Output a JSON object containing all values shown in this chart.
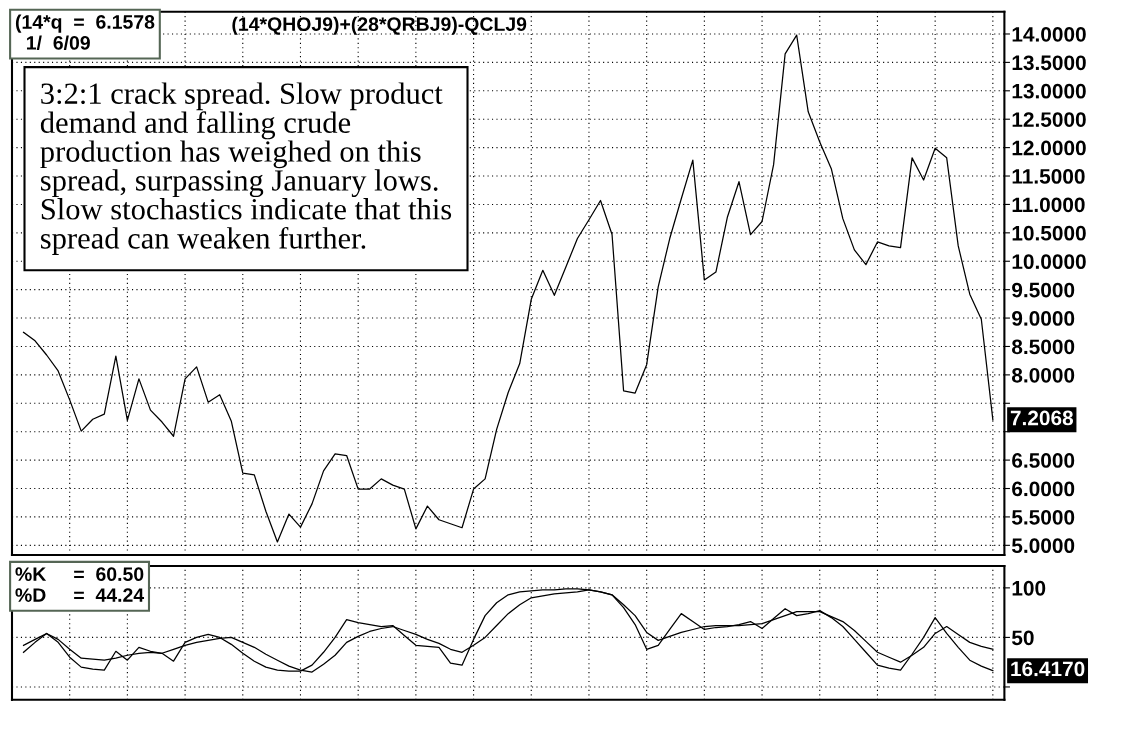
{
  "chart_data": [
    {
      "type": "line",
      "title": "(14*QHOJ9)+(28*QRBJ9)-QCLJ9",
      "categories": [
        null,
        null,
        null,
        null,
        null,
        null,
        null,
        null,
        null,
        null,
        null,
        null,
        null,
        null,
        null,
        null,
        null,
        null,
        null,
        null,
        null,
        null,
        null,
        null,
        null,
        null,
        null,
        null,
        null,
        null,
        null,
        null,
        null,
        null,
        null,
        null,
        null,
        null,
        null,
        null,
        null,
        null,
        null,
        null,
        null,
        null,
        null,
        null,
        null,
        null,
        null,
        null,
        null,
        null,
        null,
        null,
        null,
        null,
        null,
        null,
        null,
        null,
        null,
        null,
        null,
        null,
        null,
        null,
        null,
        null,
        null,
        null,
        null,
        null,
        null,
        null,
        null,
        null,
        null,
        null,
        null,
        null,
        null,
        null,
        null
      ],
      "series": [
        {
          "color": "#000000",
          "values": [
            8.75,
            8.6,
            8.35,
            8.07,
            7.56,
            7.01,
            7.22,
            7.31,
            8.33,
            7.2,
            7.93,
            7.38,
            7.17,
            6.92,
            7.93,
            8.14,
            7.52,
            7.65,
            7.19,
            6.27,
            6.24,
            5.6,
            5.06,
            5.55,
            5.32,
            5.73,
            6.31,
            6.61,
            6.58,
            5.99,
            5.99,
            6.17,
            6.06,
            5.99,
            5.29,
            5.69,
            5.45,
            5.38,
            5.31,
            5.99,
            6.17,
            7.04,
            7.69,
            8.2,
            9.33,
            9.84,
            9.4,
            9.9,
            10.4,
            10.73,
            11.07,
            10.47,
            7.72,
            7.68,
            8.18,
            9.55,
            10.4,
            11.1,
            11.78,
            9.67,
            9.81,
            10.78,
            11.4,
            10.47,
            10.7,
            11.7,
            13.65,
            13.98,
            12.63,
            12.1,
            11.63,
            10.75,
            10.2,
            9.94,
            10.34,
            10.27,
            10.24,
            11.82,
            11.43,
            11.99,
            11.82,
            10.27,
            9.42,
            8.98,
            7.21
          ]
        }
      ],
      "ylim": [
        4.83,
        14.39
      ],
      "yticks": [
        {
          "value": 5,
          "label": "5.0000"
        },
        {
          "value": 5.5,
          "label": "5.5000"
        },
        {
          "value": 6,
          "label": "6.0000"
        },
        {
          "value": 6.5,
          "label": "6.5000"
        },
        {
          "value": 7,
          "label": null
        },
        {
          "value": 7.5,
          "label": null
        },
        {
          "value": 8,
          "label": "8.0000"
        },
        {
          "value": 8.5,
          "label": "8.5000"
        },
        {
          "value": 9,
          "label": "9.0000"
        },
        {
          "value": 9.5,
          "label": "9.5000"
        },
        {
          "value": 10,
          "label": "10.0000"
        },
        {
          "value": 10.5,
          "label": "10.5000"
        },
        {
          "value": 11,
          "label": "11.0000"
        },
        {
          "value": 11.5,
          "label": "11.5000"
        },
        {
          "value": 12,
          "label": "12.0000"
        },
        {
          "value": 12.5,
          "label": "12.5000"
        },
        {
          "value": 13,
          "label": "13.0000"
        },
        {
          "value": 13.5,
          "label": "13.5000"
        },
        {
          "value": 14,
          "label": "14.0000"
        }
      ],
      "tick_labels": "y",
      "grid": true,
      "line_style": "solid",
      "annotations": [
        "(14*q  =  6.1578\n  1/  6/09",
        "3:2:1 crack spread. Slow product\ndemand and falling crude\nproduction has weighed on this\nspread, surpassing January lows.\nSlow stochastics indicate that this\nspread can weaken further.",
        "7.2068"
      ]
    },
    {
      "type": "line",
      "categories": [
        null,
        null,
        null,
        null,
        null,
        null,
        null,
        null,
        null,
        null,
        null,
        null,
        null,
        null,
        null,
        null,
        null,
        null,
        null,
        null,
        null,
        null,
        null,
        null,
        null,
        null,
        null,
        null,
        null,
        null,
        null,
        null,
        null,
        null,
        null,
        null,
        null,
        null,
        null,
        null,
        null,
        null,
        null,
        null,
        null,
        null,
        null,
        null,
        null,
        null,
        null,
        null,
        null,
        null,
        null,
        null,
        null,
        null,
        null,
        null,
        null,
        null,
        null,
        null,
        null,
        null,
        null,
        null,
        null,
        null,
        null,
        null,
        null,
        null,
        null,
        null,
        null,
        null,
        null,
        null,
        null,
        null,
        null,
        null,
        null
      ],
      "series": [
        {
          "color": "#000000",
          "values": [
            35,
            45,
            54,
            45,
            30,
            20,
            18,
            17,
            36,
            27,
            40,
            36,
            34,
            26,
            45,
            50,
            53,
            50,
            43,
            34,
            26,
            20,
            17,
            16,
            16,
            22,
            35,
            50,
            68,
            65,
            63,
            61,
            62,
            52,
            42,
            41,
            40,
            24,
            22,
            48,
            72,
            85,
            93,
            96,
            97,
            98,
            98,
            99,
            99,
            98,
            96,
            93,
            80,
            63,
            38,
            42,
            58,
            74,
            66,
            58,
            60,
            61,
            63,
            66,
            59,
            69,
            79,
            72,
            74,
            77,
            70,
            61,
            48,
            35,
            22,
            19,
            17,
            33,
            50,
            70,
            54,
            40,
            27,
            21,
            16.4
          ]
        },
        {
          "color": "#000000",
          "values": [
            42,
            48,
            54,
            48,
            38,
            29,
            28,
            27,
            29,
            32,
            34,
            35,
            34,
            38,
            42,
            45,
            47,
            49,
            50,
            45,
            40,
            33,
            27,
            21,
            17,
            15,
            23,
            32,
            45,
            51,
            56,
            59,
            61,
            57,
            53,
            48,
            44,
            38,
            35,
            42,
            50,
            62,
            74,
            83,
            90,
            92,
            94,
            95,
            96,
            98,
            96,
            93,
            83,
            72,
            55,
            47,
            51,
            55,
            58,
            61,
            62,
            62,
            62,
            63,
            64,
            68,
            72,
            76,
            76,
            76,
            71,
            66,
            57,
            46,
            35,
            30,
            25,
            32,
            40,
            54,
            61,
            53,
            45,
            41,
            38
          ]
        }
      ],
      "ylim": [
        -13,
        122
      ],
      "yticks": [
        {
          "value": 0,
          "label": null
        },
        50,
        100
      ],
      "tick_labels": "y",
      "grid": true,
      "line_style": "solid",
      "annotations": [
        "%K     =  60.50\n%D     =  44.24",
        "16.4170"
      ]
    }
  ]
}
